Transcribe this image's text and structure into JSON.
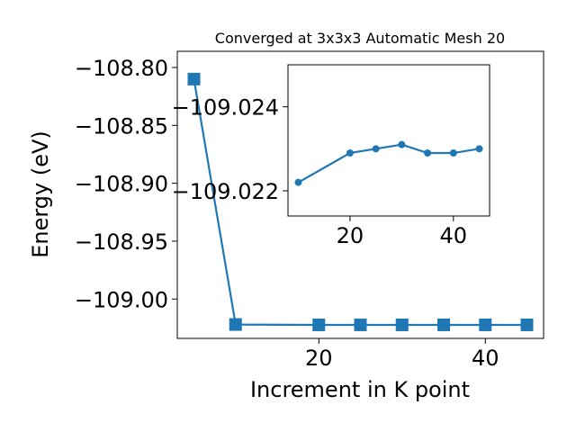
{
  "chart_data": [
    {
      "type": "line",
      "title": "Converged at 3x3x3 Automatic Mesh 20",
      "xlabel": "Increment in K point",
      "ylabel": "Energy (eV)",
      "xlim": [
        3,
        47
      ],
      "ylim": [
        -109.034,
        -108.786
      ],
      "xticks": [
        20,
        40
      ],
      "yticks": [
        -108.8,
        -108.85,
        -108.9,
        -108.95,
        -109.0
      ],
      "ytick_labels": [
        "−108.80",
        "−108.85",
        "−108.90",
        "−108.95",
        "−109.00"
      ],
      "grid": false,
      "marker": "square",
      "color": "#1f77b4",
      "x": [
        5,
        10,
        20,
        25,
        30,
        35,
        40,
        45
      ],
      "y": [
        -108.81,
        -109.022,
        -109.0223,
        -109.0223,
        -109.0223,
        -109.0223,
        -109.0223,
        -109.0223
      ]
    },
    {
      "type": "line",
      "inset": true,
      "xlim": [
        8,
        47
      ],
      "ylim": [
        -109.0214,
        -109.025
      ],
      "xticks": [
        20,
        40
      ],
      "yticks": [
        -109.024,
        -109.022
      ],
      "ytick_labels": [
        "−109.024",
        "−109.022"
      ],
      "grid": false,
      "marker": "circle",
      "color": "#1f77b4",
      "x": [
        10,
        20,
        25,
        30,
        35,
        40,
        45
      ],
      "y": [
        -109.0222,
        -109.0229,
        -109.023,
        -109.0231,
        -109.0229,
        -109.0229,
        -109.023
      ]
    }
  ]
}
